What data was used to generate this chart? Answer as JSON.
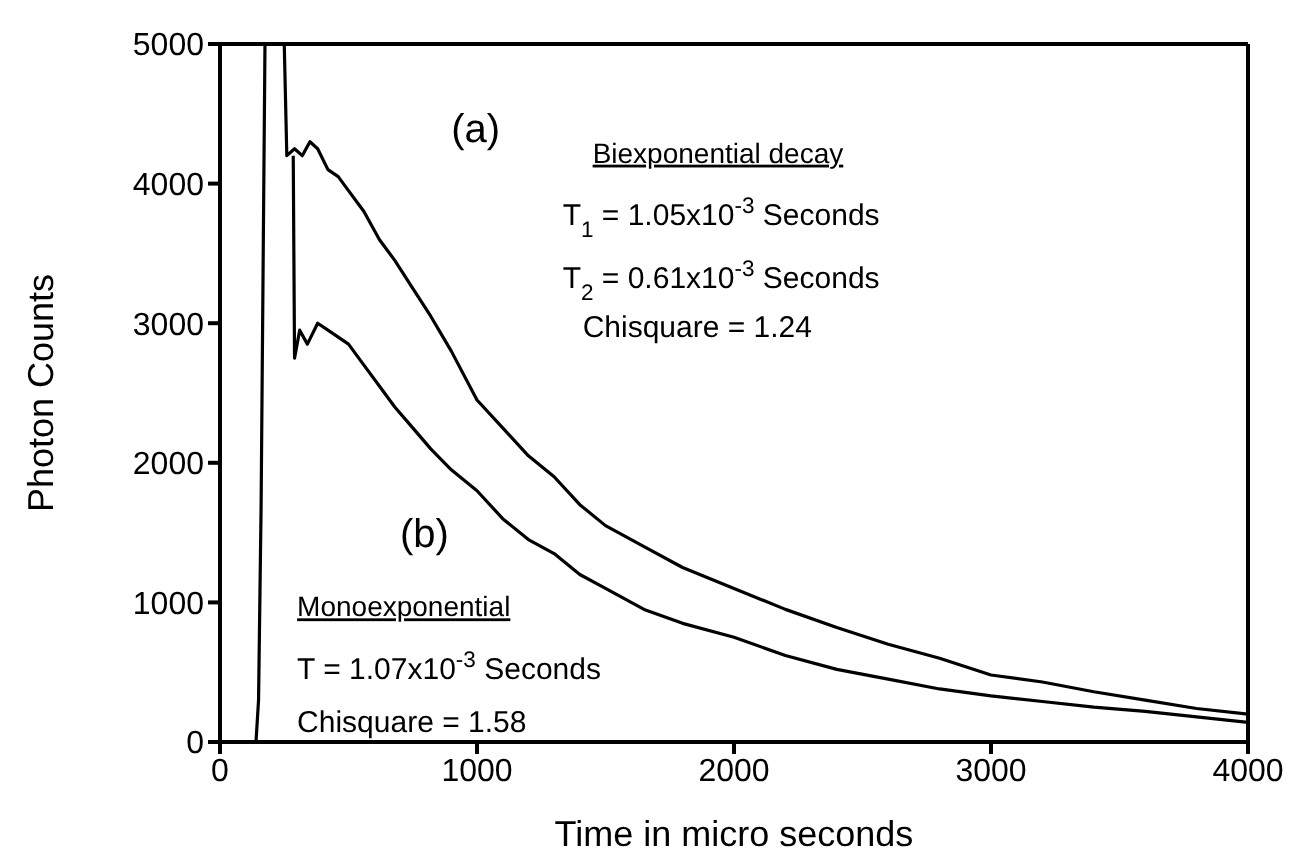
{
  "chart_data": {
    "type": "line",
    "xlabel": "Time in micro seconds",
    "ylabel": "Photon Counts",
    "xlim": [
      0,
      4000
    ],
    "xticks": [
      0,
      1000,
      2000,
      3000,
      4000
    ],
    "ylim": [
      0,
      5000
    ],
    "yticks": [
      0,
      1000,
      2000,
      3000,
      4000,
      5000
    ],
    "grid": false,
    "legend": false,
    "marker": "none",
    "line_style": "solid",
    "series": [
      {
        "color": "#000000",
        "x": [
          0,
          140,
          150,
          160,
          175,
          250,
          260,
          290,
          320,
          350,
          380,
          420,
          460,
          500,
          560,
          620,
          680,
          750,
          820,
          900,
          1000,
          1100,
          1200,
          1300,
          1400,
          1500,
          1650,
          1800,
          2000,
          2200,
          2400,
          2600,
          2800,
          3000,
          3200,
          3400,
          3600,
          3800,
          4000
        ],
        "values": [
          0,
          0,
          300,
          1700,
          5000,
          5000,
          4200,
          4250,
          4200,
          4300,
          4250,
          4100,
          4050,
          3950,
          3800,
          3600,
          3450,
          3250,
          3050,
          2800,
          2450,
          2250,
          2050,
          1900,
          1700,
          1550,
          1400,
          1250,
          1100,
          950,
          820,
          700,
          600,
          480,
          430,
          360,
          300,
          240,
          200
        ]
      },
      {
        "color": "#000000",
        "x": [
          285,
          290,
          310,
          340,
          380,
          420,
          460,
          500,
          560,
          620,
          680,
          750,
          820,
          900,
          1000,
          1100,
          1200,
          1300,
          1400,
          1500,
          1650,
          1800,
          2000,
          2200,
          2400,
          2600,
          2800,
          3000,
          3200,
          3400,
          3600,
          3800,
          4000
        ],
        "values": [
          4200,
          2750,
          2950,
          2850,
          3000,
          2950,
          2900,
          2850,
          2700,
          2550,
          2400,
          2250,
          2100,
          1950,
          1800,
          1600,
          1450,
          1350,
          1200,
          1100,
          950,
          850,
          750,
          620,
          520,
          450,
          380,
          330,
          290,
          250,
          220,
          180,
          140
        ]
      }
    ],
    "annotations": [
      "(a)",
      "(b)",
      "Biexponential decay",
      "T$_{1}$ = 1.05x10$^{-3}$ Seconds",
      "T$_{2}$ = 0.61x10$^{-3}$ Seconds",
      "Chisquare = 1.24",
      "Monoexponential",
      "T = 1.07x10$^{-3}$ Seconds",
      "Chisquare = 1.58"
    ]
  }
}
